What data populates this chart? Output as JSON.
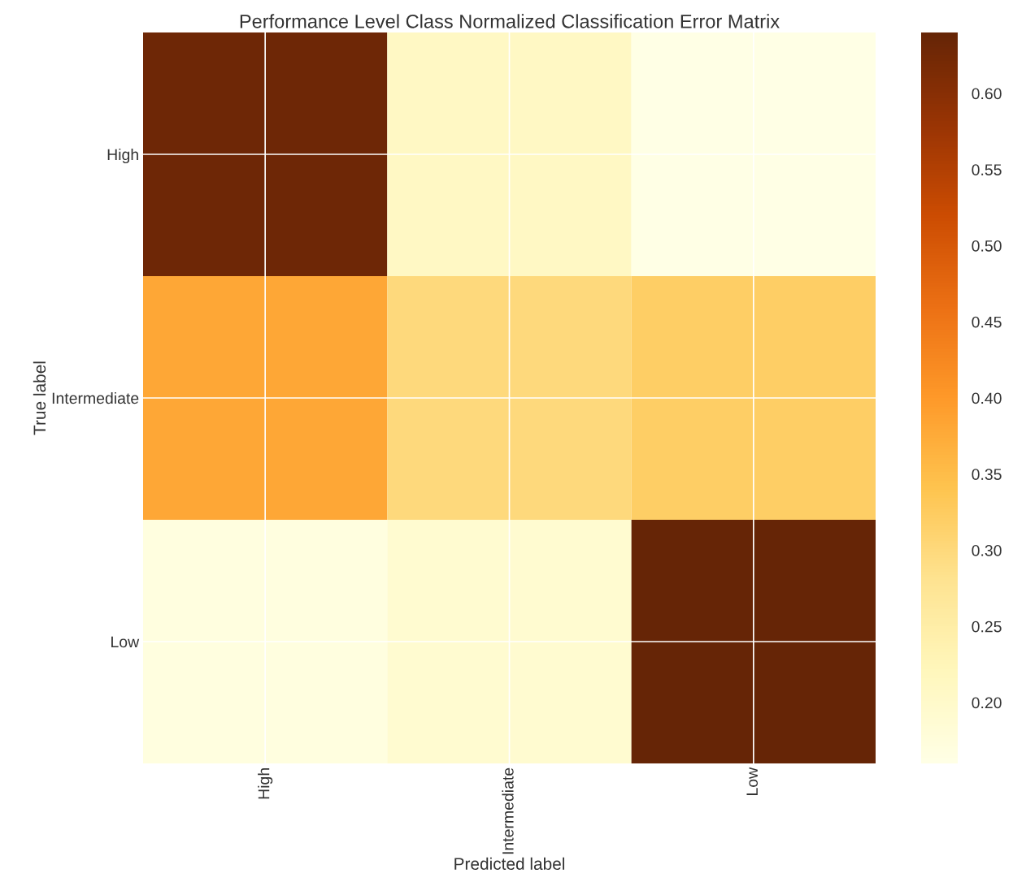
{
  "chart_data": {
    "type": "heatmap",
    "title": "Performance Level Class Normalized Classification Error Matrix",
    "xlabel": "Predicted label",
    "ylabel": "True label",
    "categories": [
      "High",
      "Intermediate",
      "Low"
    ],
    "y_categories": [
      "High",
      "Intermediate",
      "Low"
    ],
    "cells": [
      [
        0.63,
        0.21,
        0.16
      ],
      [
        0.38,
        0.3,
        0.32
      ],
      [
        0.17,
        0.19,
        0.64
      ]
    ],
    "clim": [
      0.16,
      0.64
    ],
    "cticks": [
      {
        "value": 0.2,
        "label": "0.20"
      },
      0.25,
      {
        "value": 0.3,
        "label": "0.30"
      },
      0.35,
      {
        "value": 0.4,
        "label": "0.40"
      },
      0.45,
      {
        "value": 0.5,
        "label": "0.50"
      },
      0.55,
      {
        "value": 0.6,
        "label": "0.60"
      }
    ],
    "grid": true
  }
}
